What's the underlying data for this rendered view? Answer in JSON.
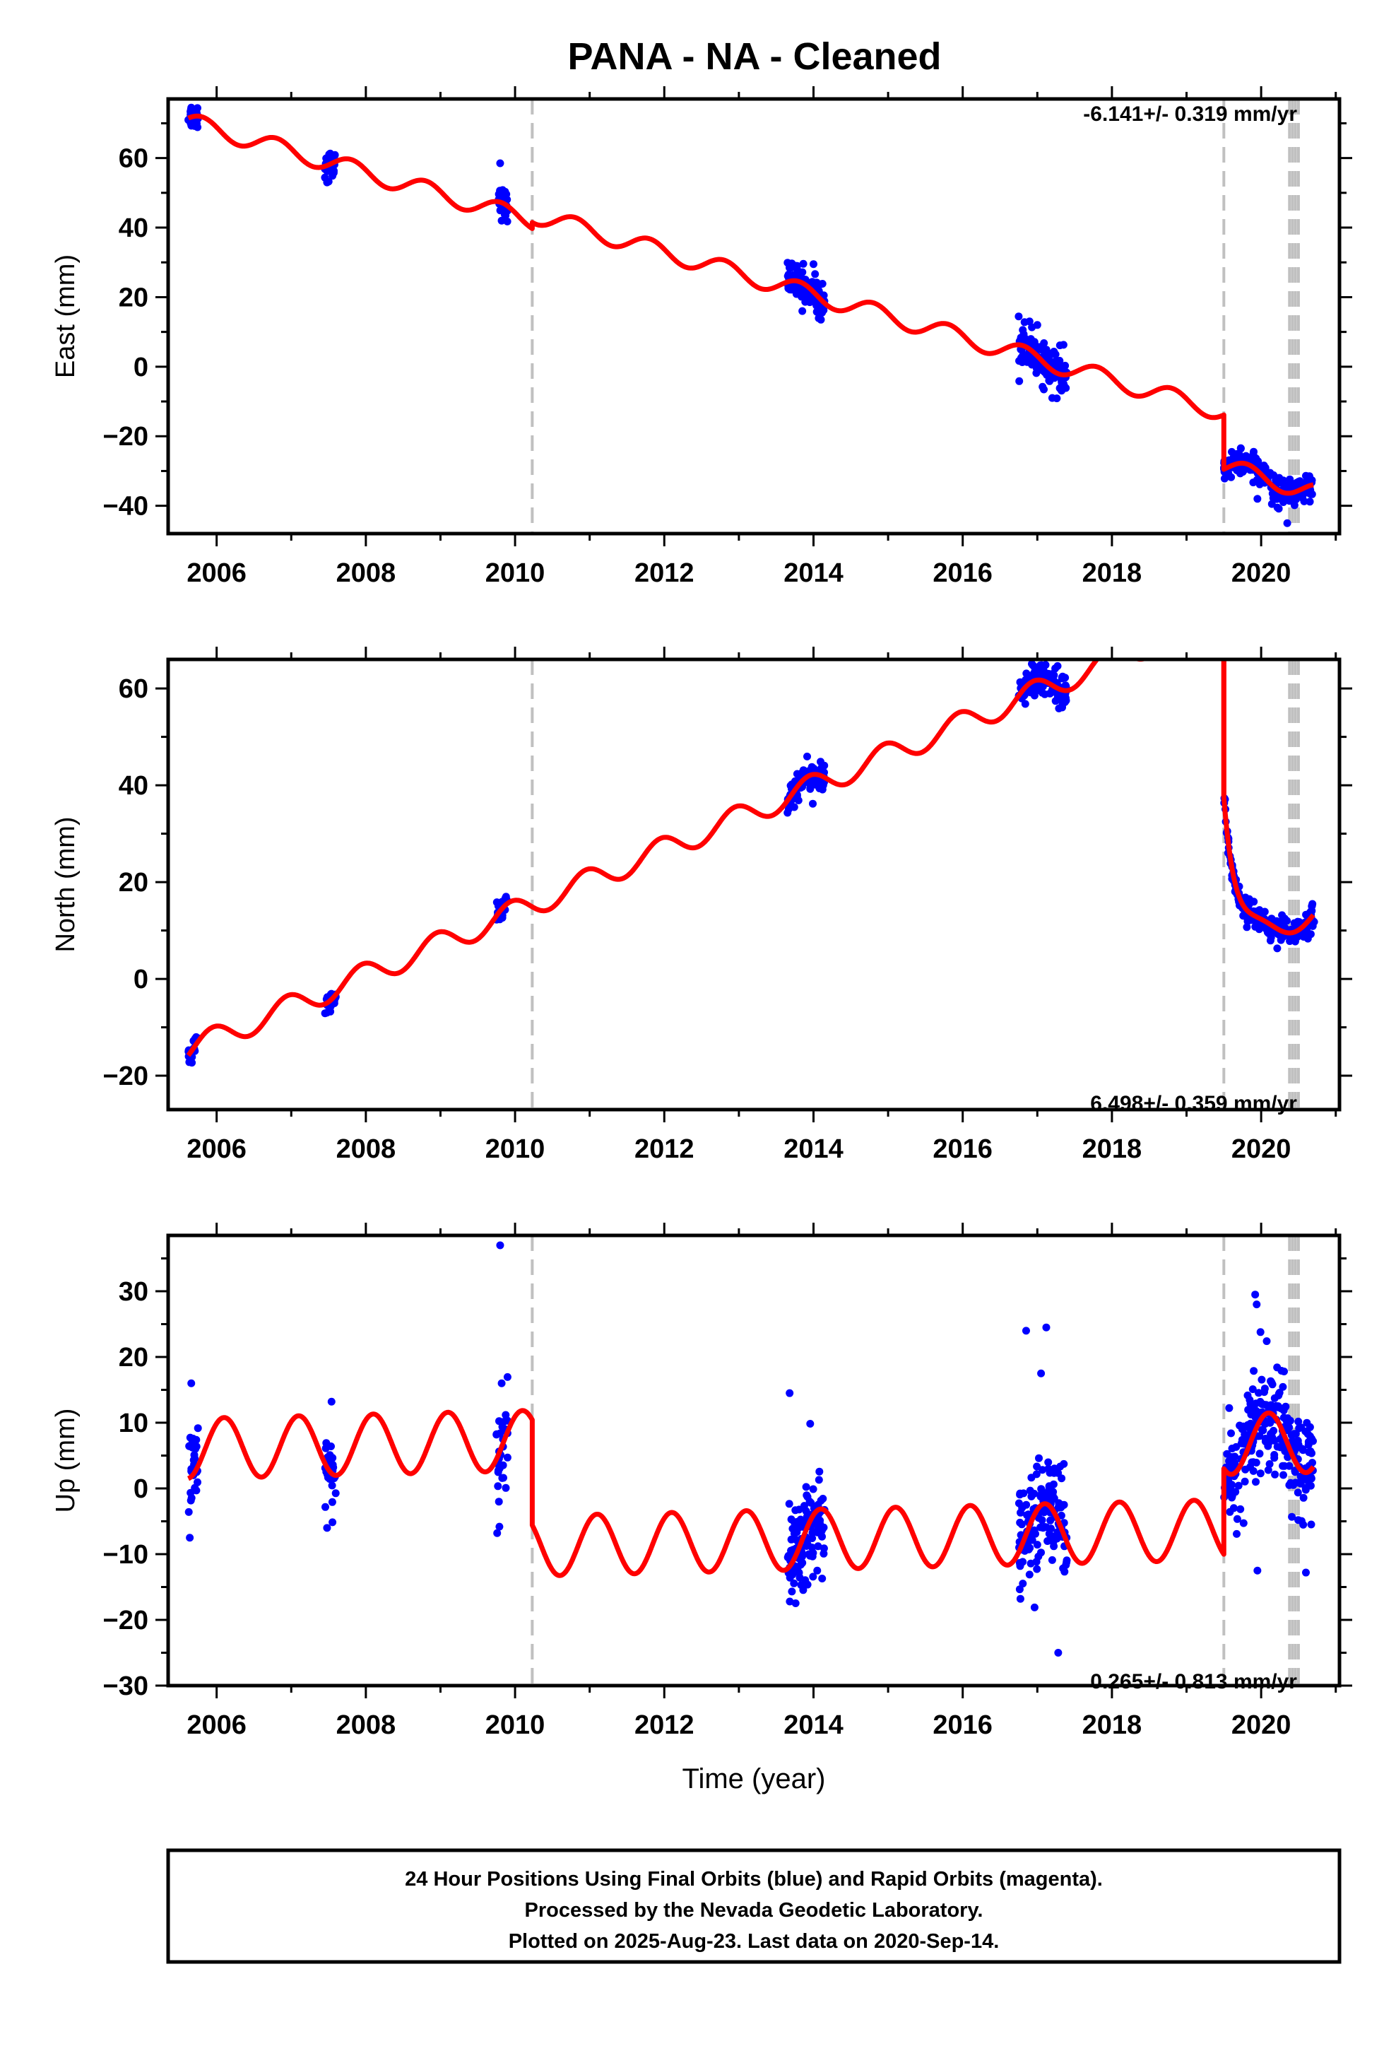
{
  "title": "PANA  - NA - Cleaned",
  "footer_lines": [
    "24 Hour Positions Using Final Orbits (blue) and Rapid Orbits (magenta).",
    "Processed by the Nevada Geodetic Laboratory.",
    "Plotted on 2025-Aug-23. Last data on 2020-Sep-14."
  ],
  "colors": {
    "data": "#0000ff",
    "model": "#ff0000",
    "break": "#c0c0c0",
    "axis": "#000000"
  },
  "chart_data": [
    {
      "type": "scatter",
      "panel": "east",
      "title": "",
      "xlabel": "",
      "ylabel": "East (mm)",
      "rate_label": "-6.141+/- 0.319 mm/yr",
      "xlim": [
        2005.35,
        2021.05
      ],
      "ylim": [
        -48,
        77
      ],
      "xticks": [
        2006,
        2008,
        2010,
        2012,
        2014,
        2016,
        2018,
        2020
      ],
      "yticks": [
        -40,
        -20,
        0,
        20,
        40,
        60
      ],
      "breaks": [
        2010.23,
        2019.5,
        2020.38,
        2020.42,
        2020.46,
        2020.5
      ],
      "model": {
        "rate": -6.141,
        "seasonal_amp": 2.6,
        "seasonal_phase": 0.45,
        "pieces": [
          {
            "from": 2005.62,
            "to": 2010.23,
            "ref_x": 2005.62,
            "ref_y": 71.5
          },
          {
            "from": 2010.23,
            "to": 2019.5,
            "ref_x": 2010.23,
            "ref_y": 41.5
          },
          {
            "from": 2019.5,
            "to": 2020.7,
            "ref_x": 2019.5,
            "ref_y": -29.5
          }
        ]
      },
      "clusters": [
        {
          "from": 2005.62,
          "to": 2005.75,
          "n": 28,
          "spread": 1.8,
          "outliers": [
            [
              2005.66,
              74.5
            ]
          ]
        },
        {
          "from": 2007.45,
          "to": 2007.6,
          "n": 28,
          "spread": 2.0,
          "outliers": [
            [
              2007.52,
              61
            ],
            [
              2007.48,
              53
            ]
          ]
        },
        {
          "from": 2009.75,
          "to": 2009.9,
          "n": 28,
          "spread": 2.0,
          "outliers": [
            [
              2009.8,
              58.5
            ],
            [
              2009.82,
              42
            ]
          ]
        },
        {
          "from": 2013.65,
          "to": 2014.15,
          "n": 110,
          "spread": 2.6,
          "outliers": [
            [
              2013.85,
              16
            ],
            [
              2014.0,
              29.5
            ]
          ]
        },
        {
          "from": 2016.75,
          "to": 2017.4,
          "n": 130,
          "spread": 3.0,
          "outliers": [
            [
              2017.2,
              -9
            ],
            [
              2017.0,
              12
            ]
          ]
        },
        {
          "from": 2019.5,
          "to": 2020.72,
          "n": 240,
          "spread": 1.8,
          "outliers": [
            [
              2020.35,
              -45
            ],
            [
              2019.95,
              -38
            ]
          ]
        }
      ]
    },
    {
      "type": "scatter",
      "panel": "north",
      "title": "",
      "xlabel": "",
      "ylabel": "North (mm)",
      "rate_label": "6.498+/- 0.359 mm/yr",
      "xlim": [
        2005.35,
        2021.05
      ],
      "ylim": [
        -27,
        66
      ],
      "xticks": [
        2006,
        2008,
        2010,
        2012,
        2014,
        2016,
        2018,
        2020
      ],
      "yticks": [
        -20,
        0,
        20,
        40,
        60
      ],
      "breaks": [
        2010.23,
        2019.5,
        2020.38,
        2020.42,
        2020.46,
        2020.5
      ],
      "model": {
        "rate": 6.498,
        "seasonal_amp": 2.5,
        "seasonal_phase": 0.3,
        "pieces": [
          {
            "from": 2005.62,
            "to": 2019.5,
            "ref_x": 2005.62,
            "ref_y": -15.8
          }
        ],
        "post_seismic": {
          "start": 2019.5,
          "to": 2020.7,
          "jump_top": 66,
          "offset": -33,
          "amp": 34,
          "tau": 0.17
        }
      },
      "clusters": [
        {
          "from": 2005.62,
          "to": 2005.75,
          "n": 24,
          "spread": 1.0,
          "outliers": []
        },
        {
          "from": 2007.45,
          "to": 2007.6,
          "n": 24,
          "spread": 0.9,
          "outliers": []
        },
        {
          "from": 2009.75,
          "to": 2009.9,
          "n": 22,
          "spread": 1.4,
          "outliers": [
            [
              2009.8,
              13.5
            ]
          ]
        },
        {
          "from": 2013.65,
          "to": 2014.15,
          "n": 110,
          "spread": 1.5,
          "outliers": []
        },
        {
          "from": 2016.75,
          "to": 2017.4,
          "n": 120,
          "spread": 1.8,
          "outliers": []
        },
        {
          "from": 2019.5,
          "to": 2020.72,
          "n": 220,
          "spread": 1.2,
          "outliers": []
        }
      ]
    },
    {
      "type": "scatter",
      "panel": "up",
      "title": "",
      "xlabel": "Time (year)",
      "ylabel": "Up (mm)",
      "rate_label": "0.265+/- 0.813 mm/yr",
      "xlim": [
        2005.35,
        2021.05
      ],
      "ylim": [
        -30,
        38.5
      ],
      "xticks": [
        2006,
        2008,
        2010,
        2012,
        2014,
        2016,
        2018,
        2020
      ],
      "yticks": [
        -30,
        -20,
        -10,
        0,
        10,
        20,
        30
      ],
      "breaks": [
        2010.23,
        2019.5,
        2020.38,
        2020.42,
        2020.46,
        2020.5
      ],
      "model": {
        "rate": 0.265,
        "seasonal_amp": 4.6,
        "seasonal_phase": 0.15,
        "pieces": [
          {
            "from": 2005.62,
            "to": 2010.23,
            "ref_x": 2005.62,
            "ref_y": 1.5
          },
          {
            "from": 2010.23,
            "to": 2019.5,
            "ref_x": 2010.23,
            "ref_y": -5.6
          },
          {
            "from": 2019.5,
            "to": 2020.7,
            "ref_x": 2019.5,
            "ref_y": 3.0
          }
        ]
      },
      "clusters": [
        {
          "from": 2005.62,
          "to": 2005.75,
          "n": 30,
          "spread": 3.5,
          "outliers": [
            [
              2005.66,
              16
            ],
            [
              2005.64,
              -7.5
            ]
          ]
        },
        {
          "from": 2007.45,
          "to": 2007.6,
          "n": 30,
          "spread": 3.0,
          "outliers": [
            [
              2007.54,
              13.2
            ],
            [
              2007.48,
              -6
            ]
          ]
        },
        {
          "from": 2009.75,
          "to": 2009.9,
          "n": 30,
          "spread": 3.5,
          "outliers": [
            [
              2009.8,
              37
            ],
            [
              2009.82,
              16
            ],
            [
              2009.76,
              -6.8
            ]
          ]
        },
        {
          "from": 2013.65,
          "to": 2014.15,
          "n": 120,
          "spread": 4.2,
          "outliers": [
            [
              2013.68,
              14.5
            ],
            [
              2014.05,
              -12.5
            ]
          ]
        },
        {
          "from": 2016.75,
          "to": 2017.4,
          "n": 140,
          "spread": 4.5,
          "outliers": [
            [
              2016.85,
              24
            ],
            [
              2017.12,
              24.5
            ],
            [
              2017.28,
              -25
            ],
            [
              2017.05,
              17.5
            ]
          ]
        },
        {
          "from": 2019.5,
          "to": 2020.72,
          "n": 260,
          "spread": 4.0,
          "outliers": [
            [
              2019.92,
              29.5
            ],
            [
              2019.94,
              28
            ],
            [
              2019.95,
              -12.5
            ],
            [
              2020.6,
              -12.8
            ]
          ]
        }
      ]
    }
  ]
}
